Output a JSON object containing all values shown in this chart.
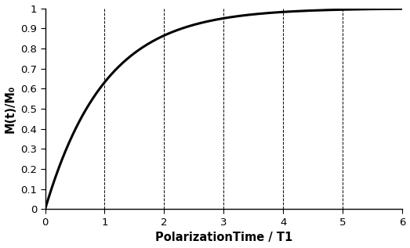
{
  "title": "",
  "xlabel": "PolarizationTime / T1",
  "ylabel": "M(t)/M₀",
  "xlim": [
    0,
    6
  ],
  "ylim": [
    0,
    1
  ],
  "xticks": [
    0,
    1,
    2,
    3,
    4,
    5,
    6
  ],
  "yticks": [
    0,
    0.1,
    0.2,
    0.3,
    0.4,
    0.5,
    0.6,
    0.7,
    0.8,
    0.9,
    1.0
  ],
  "vline_positions": [
    1,
    2,
    3,
    4,
    5
  ],
  "curve_color": "#000000",
  "curve_linewidth": 2.2,
  "background_color": "#ffffff",
  "xlabel_fontsize": 10.5,
  "ylabel_fontsize": 10.5,
  "tick_fontsize": 9.5,
  "xlabel_bold": true,
  "ylabel_bold": true,
  "font_family": "Arial"
}
